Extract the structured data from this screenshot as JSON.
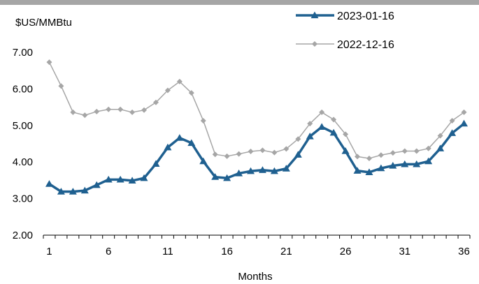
{
  "chart_data": {
    "type": "line",
    "ylabel": "$US/MMBtu",
    "xlabel": "Months",
    "ylim": [
      2.0,
      7.0
    ],
    "yticks": [
      "2.00",
      "3.00",
      "4.00",
      "5.00",
      "6.00",
      "7.00"
    ],
    "xticks": [
      1,
      6,
      11,
      16,
      21,
      26,
      31,
      36
    ],
    "x": [
      1,
      2,
      3,
      4,
      5,
      6,
      7,
      8,
      9,
      10,
      11,
      12,
      13,
      14,
      15,
      16,
      17,
      18,
      19,
      20,
      21,
      22,
      23,
      24,
      25,
      26,
      27,
      28,
      29,
      30,
      31,
      32,
      33,
      34,
      35,
      36
    ],
    "legend_position": "top-right",
    "series": [
      {
        "name": "2023-01-16",
        "color": "#1f6090",
        "marker": "triangle",
        "values": [
          3.4,
          3.19,
          3.19,
          3.22,
          3.37,
          3.52,
          3.52,
          3.49,
          3.56,
          3.95,
          4.4,
          4.66,
          4.52,
          4.02,
          3.59,
          3.56,
          3.69,
          3.75,
          3.78,
          3.75,
          3.82,
          4.2,
          4.7,
          4.96,
          4.8,
          4.3,
          3.76,
          3.72,
          3.83,
          3.9,
          3.94,
          3.94,
          4.02,
          4.37,
          4.79,
          5.05
        ]
      },
      {
        "name": "2022-12-16",
        "color": "#a6a6a6",
        "marker": "diamond",
        "values": [
          6.73,
          6.08,
          5.36,
          5.28,
          5.38,
          5.44,
          5.44,
          5.36,
          5.42,
          5.63,
          5.96,
          6.2,
          5.89,
          5.13,
          4.21,
          4.16,
          4.22,
          4.29,
          4.32,
          4.26,
          4.36,
          4.63,
          5.05,
          5.36,
          5.16,
          4.76,
          4.15,
          4.1,
          4.19,
          4.25,
          4.3,
          4.3,
          4.37,
          4.72,
          5.13,
          5.36
        ]
      }
    ]
  }
}
